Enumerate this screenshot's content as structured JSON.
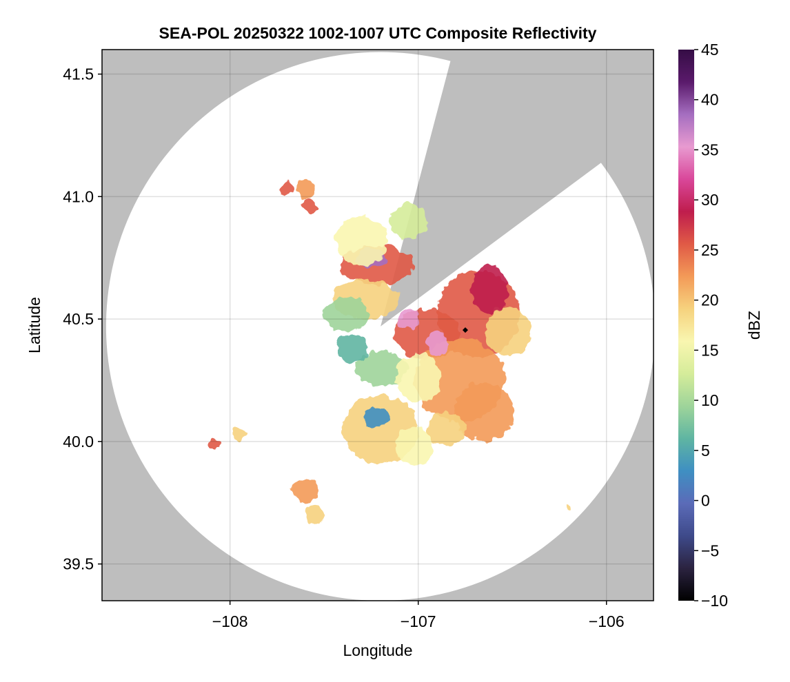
{
  "chart_data": {
    "type": "heatmap",
    "title": "SEA-POL 20250322 1002-1007 UTC Composite Reflectivity",
    "xlabel": "Longitude",
    "ylabel": "Latitude",
    "xlim": [
      -108.68,
      -105.75
    ],
    "ylim": [
      39.35,
      41.6
    ],
    "x_ticks": [
      -108,
      -107,
      -106
    ],
    "x_tick_labels": [
      "−108",
      "−107",
      "−106"
    ],
    "y_ticks": [
      39.5,
      40.0,
      40.5,
      41.0,
      41.5
    ],
    "y_tick_labels": [
      "39.5",
      "40.0",
      "40.5",
      "41.0",
      "41.5"
    ],
    "grid": true,
    "background_color": "#bebebe",
    "coverage_color": "#ffffff",
    "radar": {
      "center": [
        -107.2,
        40.47
      ],
      "range_deg_lat": 1.12,
      "blocked_sectors": [
        {
          "from_lon": -106.84,
          "from_lat": 41.52
        },
        {
          "to_lon": -106.06,
          "to_lat": 41.12
        }
      ]
    },
    "marker": {
      "lon": -106.75,
      "lat": 40.455,
      "color": "#000000"
    },
    "colorbar": {
      "label": "dBZ",
      "min": -10,
      "max": 45,
      "ticks": [
        -10,
        -5,
        0,
        5,
        10,
        15,
        20,
        25,
        30,
        35,
        40,
        45
      ],
      "tick_labels": [
        "−10",
        "−5",
        "0",
        "5",
        "10",
        "15",
        "20",
        "25",
        "30",
        "35",
        "40",
        "45"
      ],
      "colormap": [
        "#000000",
        "#2b2340",
        "#3e4a8a",
        "#5b6bb8",
        "#3f8fc2",
        "#5fb5a2",
        "#9ed49a",
        "#d5ec9a",
        "#f9f6b0",
        "#f6d27e",
        "#f39a58",
        "#e05a46",
        "#bf1d4d",
        "#d9479a",
        "#e89ad0",
        "#a56ec0",
        "#5a1a6b",
        "#350d45"
      ]
    },
    "echo_cells": [
      {
        "lon": -106.68,
        "lat": 40.52,
        "rx": 0.22,
        "ry": 0.18,
        "dbz": 26
      },
      {
        "lon": -106.95,
        "lat": 40.44,
        "rx": 0.18,
        "ry": 0.1,
        "dbz": 24
      },
      {
        "lon": -106.78,
        "lat": 40.25,
        "rx": 0.24,
        "ry": 0.17,
        "dbz": 23
      },
      {
        "lon": -106.65,
        "lat": 40.12,
        "rx": 0.16,
        "ry": 0.12,
        "dbz": 21
      },
      {
        "lon": -106.52,
        "lat": 40.45,
        "rx": 0.12,
        "ry": 0.1,
        "dbz": 18
      },
      {
        "lon": -106.62,
        "lat": 40.62,
        "rx": 0.1,
        "ry": 0.1,
        "dbz": 30
      },
      {
        "lon": -107.22,
        "lat": 40.72,
        "rx": 0.2,
        "ry": 0.08,
        "dbz": 26
      },
      {
        "lon": -107.25,
        "lat": 40.75,
        "rx": 0.08,
        "ry": 0.04,
        "dbz": 38
      },
      {
        "lon": -107.28,
        "lat": 40.58,
        "rx": 0.18,
        "ry": 0.08,
        "dbz": 20
      },
      {
        "lon": -107.38,
        "lat": 40.52,
        "rx": 0.12,
        "ry": 0.07,
        "dbz": 10
      },
      {
        "lon": -107.3,
        "lat": 40.82,
        "rx": 0.14,
        "ry": 0.1,
        "dbz": 15
      },
      {
        "lon": -107.05,
        "lat": 40.9,
        "rx": 0.1,
        "ry": 0.07,
        "dbz": 14
      },
      {
        "lon": -107.05,
        "lat": 40.5,
        "rx": 0.06,
        "ry": 0.04,
        "dbz": 36
      },
      {
        "lon": -106.9,
        "lat": 40.4,
        "rx": 0.06,
        "ry": 0.05,
        "dbz": 34
      },
      {
        "lon": -107.2,
        "lat": 40.3,
        "rx": 0.14,
        "ry": 0.07,
        "dbz": 9
      },
      {
        "lon": -107.0,
        "lat": 40.26,
        "rx": 0.12,
        "ry": 0.1,
        "dbz": 16
      },
      {
        "lon": -107.2,
        "lat": 40.05,
        "rx": 0.2,
        "ry": 0.14,
        "dbz": 19
      },
      {
        "lon": -107.22,
        "lat": 40.1,
        "rx": 0.07,
        "ry": 0.04,
        "dbz": 2
      },
      {
        "lon": -107.02,
        "lat": 39.98,
        "rx": 0.1,
        "ry": 0.08,
        "dbz": 16
      },
      {
        "lon": -106.85,
        "lat": 40.05,
        "rx": 0.1,
        "ry": 0.07,
        "dbz": 18
      },
      {
        "lon": -107.6,
        "lat": 41.03,
        "rx": 0.05,
        "ry": 0.04,
        "dbz": 22
      },
      {
        "lon": -107.7,
        "lat": 41.03,
        "rx": 0.04,
        "ry": 0.03,
        "dbz": 24
      },
      {
        "lon": -107.58,
        "lat": 40.96,
        "rx": 0.04,
        "ry": 0.03,
        "dbz": 26
      },
      {
        "lon": -107.6,
        "lat": 39.8,
        "rx": 0.07,
        "ry": 0.05,
        "dbz": 22
      },
      {
        "lon": -107.55,
        "lat": 39.7,
        "rx": 0.05,
        "ry": 0.04,
        "dbz": 18
      },
      {
        "lon": -108.08,
        "lat": 39.99,
        "rx": 0.025,
        "ry": 0.02,
        "dbz": 26
      },
      {
        "lon": -107.95,
        "lat": 40.03,
        "rx": 0.04,
        "ry": 0.025,
        "dbz": 20
      },
      {
        "lon": -106.2,
        "lat": 39.73,
        "rx": 0.015,
        "ry": 0.01,
        "dbz": 18
      },
      {
        "lon": -107.35,
        "lat": 40.38,
        "rx": 0.08,
        "ry": 0.06,
        "dbz": 7
      }
    ]
  }
}
